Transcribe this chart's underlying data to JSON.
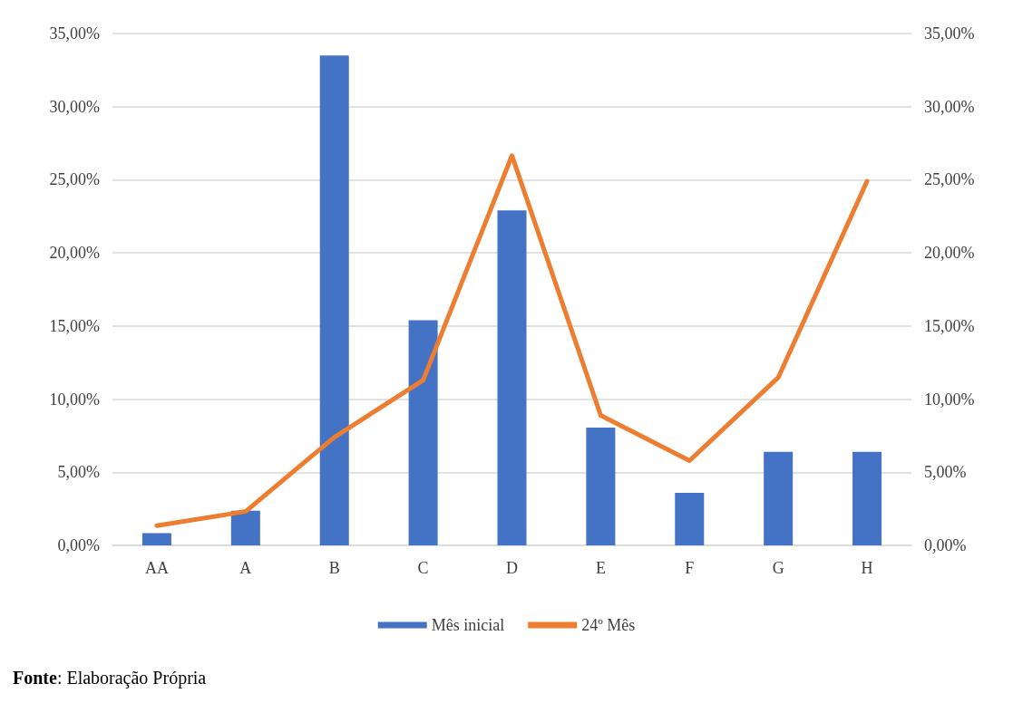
{
  "chart_data": {
    "type": "bar",
    "categories": [
      "AA",
      "A",
      "B",
      "C",
      "D",
      "E",
      "F",
      "G",
      "H"
    ],
    "series": [
      {
        "name": "Mês inicial",
        "color": "#4472c4",
        "values": [
          0.83,
          2.37,
          33.5,
          15.4,
          22.9,
          8.06,
          3.6,
          6.4,
          6.4
        ]
      },
      {
        "name": "24º Mês",
        "type": "line",
        "axis": "y2",
        "color": "#ed7d31",
        "values": [
          1.35,
          2.32,
          7.4,
          11.3,
          26.65,
          8.89,
          5.79,
          11.48,
          24.9
        ]
      }
    ],
    "ylim": [
      0,
      35
    ],
    "yticks": [
      {
        "value": 0,
        "label": "0,00%"
      },
      {
        "value": 5,
        "label": "5,00%"
      },
      {
        "value": 10,
        "label": "10,00%"
      },
      {
        "value": 15,
        "label": "15,00%"
      },
      {
        "value": 20,
        "label": "20,00%"
      },
      {
        "value": 25,
        "label": "25,00%"
      },
      {
        "value": 30,
        "label": "30,00%"
      },
      {
        "value": 35,
        "label": "35,00%"
      }
    ],
    "y2lim": [
      0,
      35
    ],
    "y2ticks": [
      {
        "value": 0,
        "label": "0,00%"
      },
      {
        "value": 5,
        "label": "5,00%"
      },
      {
        "value": 10,
        "label": "10,00%"
      },
      {
        "value": 15,
        "label": "15,00%"
      },
      {
        "value": 20,
        "label": "20,00%"
      },
      {
        "value": 25,
        "label": "25,00%"
      },
      {
        "value": 30,
        "label": "30,00%"
      },
      {
        "value": 35,
        "label": "35,00%"
      }
    ],
    "grid": "y",
    "legend": "bottom",
    "marker": "none",
    "line_style": "solid",
    "annotations": [
      "Fonte: Elaboração Própria"
    ]
  }
}
